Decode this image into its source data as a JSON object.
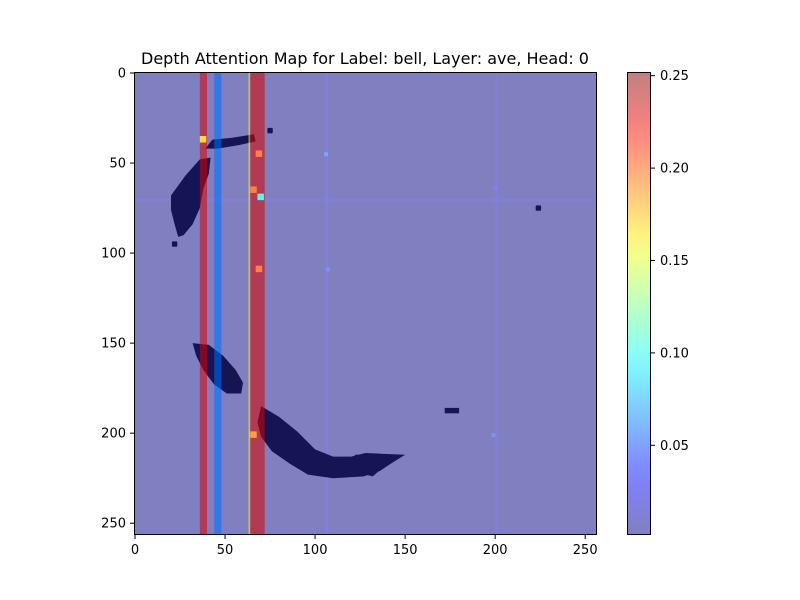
{
  "chart_data": {
    "type": "heatmap",
    "title": "Depth Attention Map for Label: bell, Layer: ave, Head: 0",
    "xlabel": "",
    "ylabel": "",
    "xlim": [
      0,
      256
    ],
    "ylim": [
      256,
      0
    ],
    "x_ticks": [
      0,
      50,
      100,
      150,
      200,
      250
    ],
    "y_ticks": [
      0,
      50,
      100,
      150,
      200,
      250
    ],
    "grid": false,
    "colorbar": {
      "colormap": "jet",
      "alpha": 0.5,
      "range": [
        0.002,
        0.252
      ],
      "ticks": [
        0.05,
        0.1,
        0.15,
        0.2,
        0.25
      ],
      "tick_labels": [
        "0.05",
        "0.10",
        "0.15",
        "0.20",
        "0.25"
      ]
    },
    "background_value": 0.002,
    "attention_columns": [
      {
        "x_start": 36,
        "x_end": 40,
        "value": 0.23
      },
      {
        "x_start": 44,
        "x_end": 48,
        "value": 0.06
      },
      {
        "x_start": 63,
        "x_end": 64,
        "value": 0.16
      },
      {
        "x_start": 64,
        "x_end": 72,
        "value": 0.23
      }
    ],
    "hot_spots": [
      {
        "x": 38,
        "y": 37,
        "value": 0.17
      },
      {
        "x": 69,
        "y": 45,
        "value": 0.2
      },
      {
        "x": 66,
        "y": 65,
        "value": 0.2
      },
      {
        "x": 70,
        "y": 69,
        "value": 0.1
      },
      {
        "x": 69,
        "y": 109,
        "value": 0.2
      },
      {
        "x": 66,
        "y": 201,
        "value": 0.19
      }
    ],
    "dark_regions": [
      {
        "name": "upper-left-stroke",
        "points": [
          [
            20,
            68
          ],
          [
            28,
            57
          ],
          [
            36,
            48
          ],
          [
            42,
            47
          ],
          [
            41,
            56
          ],
          [
            38,
            64
          ],
          [
            36,
            75
          ],
          [
            32,
            84
          ],
          [
            27,
            90
          ],
          [
            24,
            91
          ],
          [
            22,
            84
          ],
          [
            20,
            76
          ]
        ]
      },
      {
        "name": "upper-bridge",
        "points": [
          [
            39,
            42
          ],
          [
            43,
            37
          ],
          [
            54,
            36
          ],
          [
            66,
            34
          ],
          [
            67,
            38
          ],
          [
            58,
            40
          ],
          [
            46,
            42
          ]
        ]
      },
      {
        "name": "middle-stroke",
        "points": [
          [
            32,
            150
          ],
          [
            41,
            151
          ],
          [
            49,
            157
          ],
          [
            56,
            165
          ],
          [
            60,
            172
          ],
          [
            59,
            178
          ],
          [
            51,
            178
          ],
          [
            44,
            173
          ],
          [
            38,
            165
          ],
          [
            34,
            157
          ]
        ]
      },
      {
        "name": "lower-arc",
        "points": [
          [
            70,
            185
          ],
          [
            80,
            191
          ],
          [
            90,
            199
          ],
          [
            100,
            209
          ],
          [
            110,
            213
          ],
          [
            120,
            213
          ],
          [
            128,
            211
          ],
          [
            150,
            212
          ],
          [
            142,
            217
          ],
          [
            136,
            221
          ],
          [
            127,
            224
          ],
          [
            110,
            225
          ],
          [
            96,
            223
          ],
          [
            86,
            217
          ],
          [
            76,
            210
          ],
          [
            70,
            202
          ],
          [
            68,
            194
          ]
        ]
      },
      {
        "name": "lower-right-blob",
        "points": [
          [
            122,
            212
          ],
          [
            142,
            212
          ],
          [
            139,
            218
          ],
          [
            132,
            224
          ],
          [
            124,
            222
          ]
        ]
      },
      {
        "name": "far-right-dash",
        "points": [
          [
            172,
            186
          ],
          [
            180,
            186
          ],
          [
            180,
            189
          ],
          [
            172,
            189
          ]
        ]
      }
    ],
    "dark_dots": [
      {
        "x": 75,
        "y": 32
      },
      {
        "x": 224,
        "y": 75
      },
      {
        "x": 22,
        "y": 95
      }
    ],
    "faint_lines": [
      {
        "orientation": "v",
        "pos": 106,
        "value": 0.03
      },
      {
        "orientation": "v",
        "pos": 200,
        "value": 0.02
      },
      {
        "orientation": "h",
        "pos": 70,
        "value": 0.02
      }
    ],
    "faint_spots": [
      {
        "x": 106,
        "y": 45,
        "value": 0.05
      },
      {
        "x": 107,
        "y": 109,
        "value": 0.04
      },
      {
        "x": 199,
        "y": 201,
        "value": 0.04
      },
      {
        "x": 200,
        "y": 64,
        "value": 0.03
      }
    ]
  }
}
